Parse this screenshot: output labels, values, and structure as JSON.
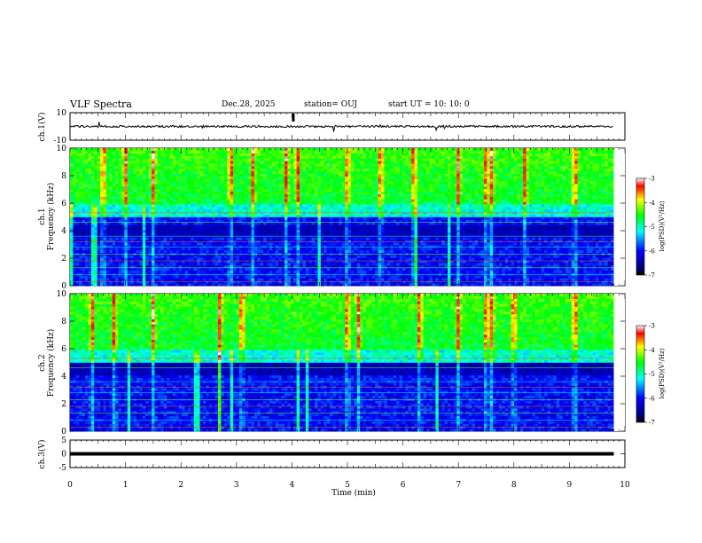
{
  "header": {
    "title": "VLF Spectra",
    "date": "Dec.28, 2025",
    "station": "station= OUJ",
    "start": "start  UT =   10: 10: 0"
  },
  "chart_data": [
    {
      "type": "line",
      "ylabel": "ch.1(V)",
      "ylim": [
        -10,
        10
      ],
      "yticks": [
        "10",
        "-10"
      ],
      "xlim": [
        0,
        10
      ],
      "series": [
        {
          "baseline": 0,
          "noise_amplitude": 1.5,
          "spike_amplitude": 8
        }
      ]
    },
    {
      "type": "heatmap",
      "ylabel_line1": "ch.1",
      "ylabel_line2": "Frequency (kHz)",
      "ylim": [
        0,
        10
      ],
      "yticks": [
        "0",
        "2",
        "4",
        "6",
        "8",
        "10"
      ],
      "xlim": [
        0,
        9.8
      ],
      "colorbar": {
        "label": "log(PSD)(V²/Hz)",
        "range": [
          -7,
          -3
        ],
        "ticks": [
          "-3",
          "-4",
          "-5",
          "-6",
          "-7"
        ]
      },
      "strong_bursts_min": [
        0.6,
        1.0,
        1.5,
        2.9,
        3.3,
        3.9,
        4.1,
        5.0,
        5.6,
        6.2,
        7.0,
        7.5,
        7.6,
        8.2,
        9.1
      ],
      "low_freq_band_khz": [
        1.0,
        3.6
      ],
      "dark_band_khz": [
        3.6,
        4.4
      ]
    },
    {
      "type": "heatmap",
      "ylabel_line1": "ch.2",
      "ylabel_line2": "Frequency (kHz)",
      "ylim": [
        0,
        10
      ],
      "yticks": [
        "0",
        "2",
        "4",
        "6",
        "8",
        "10"
      ],
      "xlim": [
        0,
        9.8
      ],
      "colorbar": {
        "label": "log(PSD)(V²/Hz)",
        "range": [
          -7,
          -3
        ],
        "ticks": [
          "-3",
          "-4",
          "-5",
          "-6",
          "-7"
        ]
      },
      "strong_bursts_min": [
        0.4,
        0.8,
        1.5,
        2.7,
        3.1,
        5.0,
        5.2,
        6.3,
        7.0,
        7.5,
        7.6,
        8.0,
        9.1
      ],
      "low_freq_band_khz": [
        0.5,
        4.5
      ],
      "dark_band_khz": [
        4.0,
        5.0
      ]
    },
    {
      "type": "line",
      "ylabel": "ch.3(V)",
      "ylim": [
        -5,
        5
      ],
      "yticks": [
        "5",
        "0",
        "-5"
      ],
      "xlim": [
        0,
        10
      ],
      "series": [
        {
          "constant": 0
        }
      ]
    }
  ],
  "xaxis": {
    "label": "Time (min)",
    "ticks": [
      "0",
      "1",
      "2",
      "3",
      "4",
      "5",
      "6",
      "7",
      "8",
      "9",
      "10"
    ],
    "range": [
      0,
      10
    ]
  }
}
